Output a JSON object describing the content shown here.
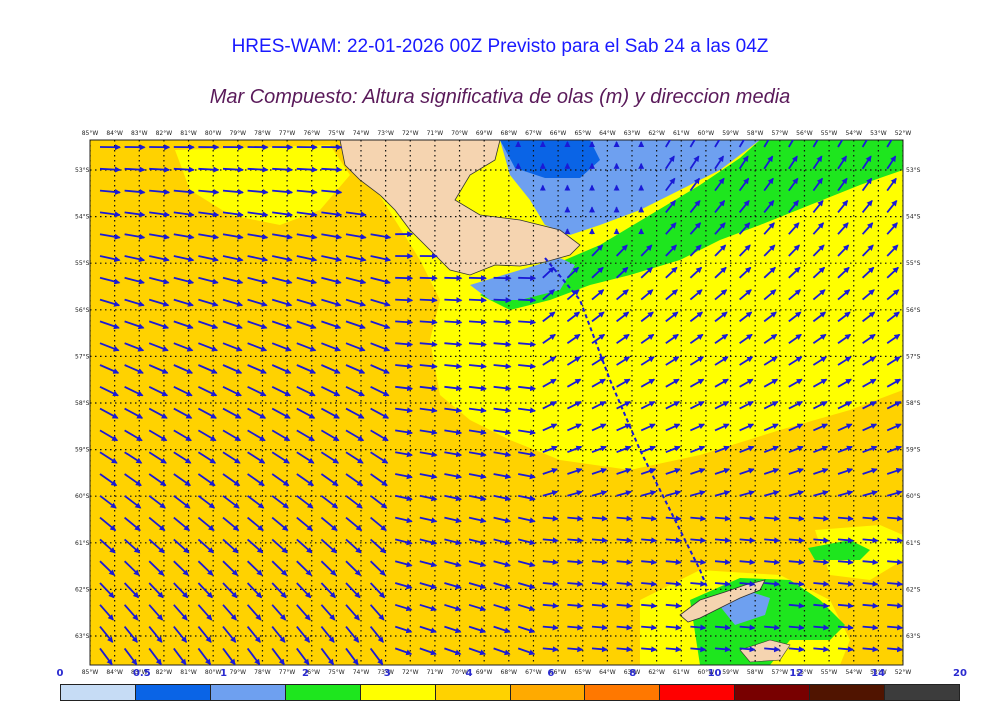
{
  "title": "HRES-WAM: 22-01-2026 00Z Previsto para el Sab 24 a las 04Z",
  "subtitle": "Mar Compuesto: Altura significativa de olas (m) y direccion media",
  "map": {
    "lon_labels": [
      "85°W",
      "84°W",
      "83°W",
      "82°W",
      "81°W",
      "80°W",
      "79°W",
      "78°W",
      "77°W",
      "76°W",
      "75°W",
      "74°W",
      "73°W",
      "72°W",
      "71°W",
      "70°W",
      "69°W",
      "68°W",
      "67°W",
      "66°W",
      "65°W",
      "64°W",
      "63°W",
      "62°W",
      "61°W",
      "60°W",
      "59°W",
      "58°W",
      "57°W",
      "56°W",
      "55°W",
      "54°W",
      "53°W",
      "52°W"
    ],
    "lat_labels": [
      "53°S",
      "54°S",
      "55°S",
      "56°S",
      "57°S",
      "58°S",
      "59°S",
      "60°S",
      "61°S",
      "62°S",
      "63°S"
    ],
    "land_color": "#f5d4b0",
    "arrow_color": "#1a1ad6",
    "route_color": "#1a1ad6"
  },
  "legend": {
    "labels": [
      "0",
      "0.5",
      "1",
      "2",
      "3",
      "4",
      "6",
      "8",
      "10",
      "12",
      "14",
      "20"
    ],
    "colors": [
      "#c6dcf5",
      "#0a64e6",
      "#6ea0f0",
      "#1ee61e",
      "#ffff00",
      "#ffd200",
      "#ffaa00",
      "#ff7800",
      "#ff0000",
      "#780000",
      "#501400",
      "#3c3c3c"
    ]
  }
}
